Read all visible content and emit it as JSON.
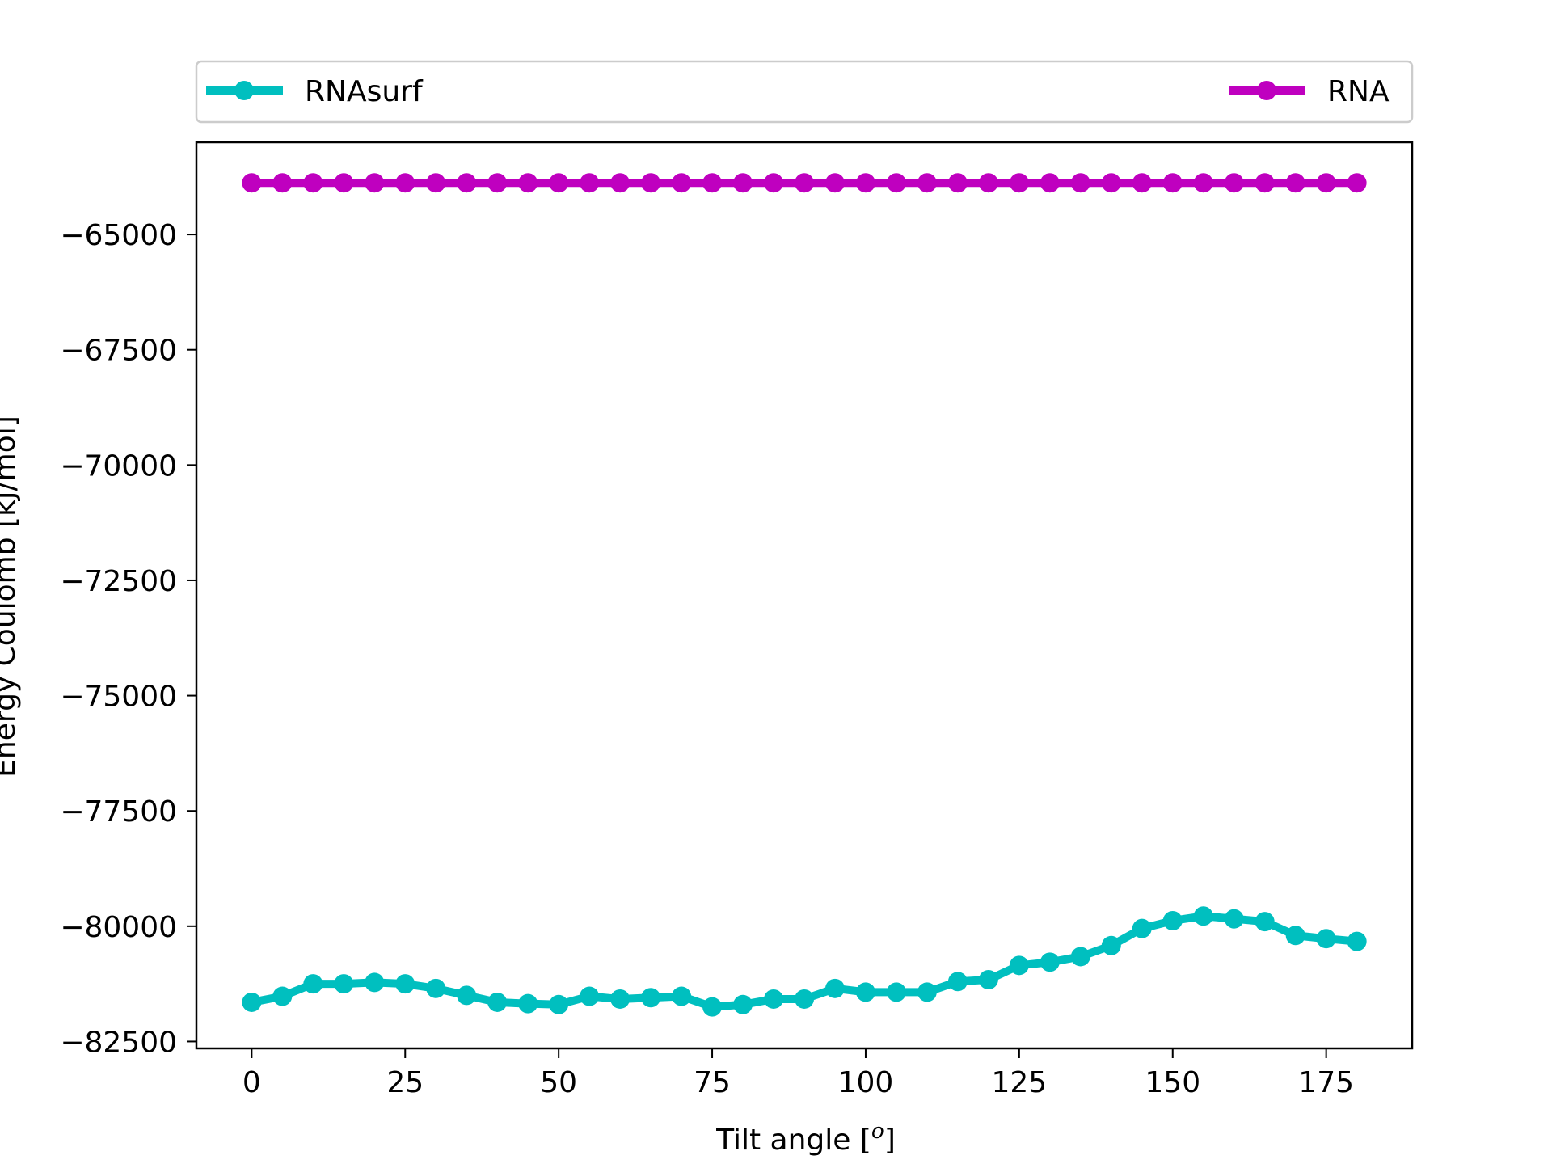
{
  "chart_data": {
    "type": "line",
    "title": "",
    "xlabel": "Tilt angle [",
    "xlabel_sup": "o",
    "xlabel_end": "]",
    "ylabel": "Energy Coulomb [kJ/mol]",
    "xlim": [
      -9,
      189
    ],
    "ylim": [
      -82650,
      -63000
    ],
    "x_ticks": [
      0,
      25,
      50,
      75,
      100,
      125,
      150,
      175
    ],
    "y_ticks": [
      -82500,
      -80000,
      -77500,
      -75000,
      -72500,
      -70000,
      -67500,
      -65000
    ],
    "x_tick_labels": [
      "0",
      "25",
      "50",
      "75",
      "100",
      "125",
      "150",
      "175"
    ],
    "y_tick_labels": [
      "−82500",
      "−80000",
      "−77500",
      "−75000",
      "−72500",
      "−70000",
      "−67500",
      "−65000"
    ],
    "grid": false,
    "legend_placement": "above-plot, expanded across top",
    "x": [
      0,
      5,
      10,
      15,
      20,
      25,
      30,
      35,
      40,
      45,
      50,
      55,
      60,
      65,
      70,
      75,
      80,
      85,
      90,
      95,
      100,
      105,
      110,
      115,
      120,
      125,
      130,
      135,
      140,
      145,
      150,
      155,
      160,
      165,
      170,
      175,
      180
    ],
    "series": [
      {
        "name": "RNAsurf",
        "color": "#00bfbf",
        "values": [
          -81650,
          -81520,
          -81250,
          -81250,
          -81220,
          -81250,
          -81350,
          -81500,
          -81650,
          -81680,
          -81700,
          -81520,
          -81580,
          -81550,
          -81520,
          -81750,
          -81700,
          -81580,
          -81580,
          -81350,
          -81430,
          -81430,
          -81430,
          -81200,
          -81160,
          -80850,
          -80780,
          -80660,
          -80420,
          -80050,
          -79880,
          -79780,
          -79840,
          -79900,
          -80200,
          -80270,
          -80330
        ]
      },
      {
        "name": "RNA",
        "color": "#bf00bf",
        "values": [
          -63880,
          -63880,
          -63880,
          -63880,
          -63880,
          -63880,
          -63880,
          -63880,
          -63880,
          -63880,
          -63880,
          -63880,
          -63880,
          -63880,
          -63880,
          -63880,
          -63880,
          -63880,
          -63880,
          -63880,
          -63880,
          -63880,
          -63880,
          -63880,
          -63880,
          -63880,
          -63880,
          -63880,
          -63880,
          -63880,
          -63880,
          -63880,
          -63880,
          -63880,
          -63880,
          -63880,
          -63880
        ]
      }
    ]
  }
}
